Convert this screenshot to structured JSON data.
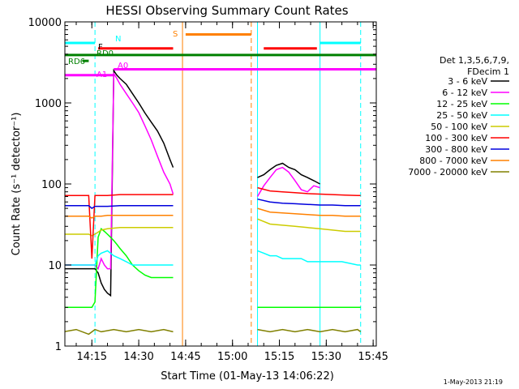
{
  "chart_data": {
    "type": "line",
    "title": "HESSI Observing Summary Count Rates",
    "xlabel": "Start Time (01-May-13 14:06:22)",
    "ylabel": "Count Rate (s⁻¹ detector⁻¹)",
    "y_scale": "log",
    "ylim": [
      1,
      10000
    ],
    "xlim": [
      "14:06:22",
      "15:46:00"
    ],
    "x_ticks": [
      "14:15",
      "14:30",
      "14:45",
      "15:00",
      "15:15",
      "15:30",
      "15:45"
    ],
    "y_ticks": [
      "1",
      "10",
      "100",
      "1000",
      "10000"
    ],
    "timestamp": "1-May-2013 21:19",
    "legend": {
      "position": "right",
      "header": [
        "Det 1,3,5,6,7,9,",
        "FDecim 1"
      ],
      "entries": [
        {
          "label": "3 - 6 keV",
          "color": "#000000"
        },
        {
          "label": "6 - 12 keV",
          "color": "#ff00ff"
        },
        {
          "label": "12 - 25 keV",
          "color": "#00ff00"
        },
        {
          "label": "25 - 50 keV",
          "color": "#00ffff"
        },
        {
          "label": "50 - 100 keV",
          "color": "#cccc00"
        },
        {
          "label": "100 - 300 keV",
          "color": "#ff0000"
        },
        {
          "label": "300 - 800 keV",
          "color": "#0000dd"
        },
        {
          "label": "800 - 7000 keV",
          "color": "#ff8000"
        },
        {
          "label": "7000 - 20000 keV",
          "color": "#808000"
        }
      ]
    },
    "flag_labels": [
      "N",
      "S",
      "F",
      "RD0",
      "RD6",
      "A1",
      "A0"
    ],
    "flag_bars": [
      {
        "name": "N",
        "color": "#00ffff",
        "level": 5500,
        "segments": [
          [
            "14:06",
            "14:16"
          ],
          [
            "15:28",
            "15:41"
          ]
        ]
      },
      {
        "name": "S",
        "color": "#ff8000",
        "level": 7000,
        "segments": [
          [
            "14:45",
            "15:06"
          ]
        ]
      },
      {
        "name": "F",
        "color": "#ff0000",
        "level": 4700,
        "segments": [
          [
            "14:17",
            "14:41"
          ],
          [
            "15:10",
            "15:27"
          ]
        ]
      },
      {
        "name": "RD0",
        "color": "#008000",
        "level": 3900,
        "segments": [
          [
            "14:06",
            "15:46"
          ]
        ]
      },
      {
        "name": "RD6",
        "color": "#008000",
        "level": 3300,
        "segments": [
          [
            "14:12",
            "14:14"
          ]
        ]
      },
      {
        "name": "A0",
        "color": "#ff00ff",
        "level": 2600,
        "segments": [
          [
            "14:22",
            "15:46"
          ]
        ]
      },
      {
        "name": "A1",
        "color": "#ff00ff",
        "level": 2200,
        "segments": [
          [
            "14:06",
            "14:22"
          ]
        ]
      }
    ],
    "vertical_markers": [
      {
        "time": "14:06",
        "color": "#00ffff",
        "style": "solid"
      },
      {
        "time": "14:16",
        "color": "#00ffff",
        "style": "dashed"
      },
      {
        "time": "14:44",
        "color": "#ff8000",
        "style": "solid"
      },
      {
        "time": "15:06",
        "color": "#ff8000",
        "style": "dashed"
      },
      {
        "time": "15:08",
        "color": "#00ffff",
        "style": "solid"
      },
      {
        "time": "15:28",
        "color": "#00ffff",
        "style": "solid"
      },
      {
        "time": "15:41",
        "color": "#00ffff",
        "style": "dashed"
      }
    ],
    "series": [
      {
        "name": "3 - 6 keV",
        "color": "#000000",
        "x": [
          "14:06",
          "14:12",
          "14:14",
          "14:15",
          "14:16",
          "14:17",
          "14:18",
          "14:19",
          "14:20",
          "14:21",
          "14:22",
          "14:23",
          "14:24",
          "14:26",
          "14:28",
          "14:30",
          "14:32",
          "14:34",
          "14:36",
          "14:38",
          "14:40",
          "14:41",
          "15:08",
          "15:10",
          "15:12",
          "15:14",
          "15:16",
          "15:18",
          "15:20",
          "15:22",
          "15:24",
          "15:26",
          "15:28"
        ],
        "y": [
          9,
          9,
          9,
          9,
          9,
          8,
          6,
          5,
          4.5,
          4.2,
          2500,
          2200,
          2000,
          1700,
          1300,
          1000,
          750,
          580,
          450,
          320,
          200,
          160,
          120,
          130,
          150,
          170,
          180,
          160,
          150,
          130,
          120,
          110,
          100
        ]
      },
      {
        "name": "6 - 12 keV",
        "color": "#ff00ff",
        "x": [
          "14:06",
          "14:12",
          "14:14",
          "14:15",
          "14:16",
          "14:17",
          "14:18",
          "14:19",
          "14:20",
          "14:21",
          "14:22",
          "14:23",
          "14:24",
          "14:26",
          "14:28",
          "14:30",
          "14:32",
          "14:34",
          "14:36",
          "14:38",
          "14:40",
          "14:41",
          "15:08",
          "15:10",
          "15:12",
          "15:14",
          "15:16",
          "15:18",
          "15:20",
          "15:22",
          "15:24",
          "15:26",
          "15:28"
        ],
        "y": [
          10,
          10,
          10,
          10,
          10,
          9,
          12,
          10,
          9,
          9,
          2300,
          2000,
          1700,
          1300,
          1000,
          760,
          520,
          350,
          220,
          140,
          100,
          75,
          70,
          95,
          120,
          150,
          160,
          140,
          110,
          85,
          80,
          95,
          90
        ]
      },
      {
        "name": "12 - 25 keV",
        "color": "#00ff00",
        "x": [
          "14:06",
          "14:12",
          "14:14",
          "14:15",
          "14:16",
          "14:17",
          "14:18",
          "14:19",
          "14:20",
          "14:21",
          "14:22",
          "14:23",
          "14:24",
          "14:26",
          "14:28",
          "14:30",
          "14:32",
          "14:34",
          "14:36",
          "14:38",
          "14:40",
          "14:41",
          "15:08",
          "15:10",
          "15:12",
          "15:14",
          "15:16",
          "15:18",
          "15:20",
          "15:22",
          "15:24",
          "15:26",
          "15:28",
          "15:30",
          "15:35",
          "15:40",
          "15:41"
        ],
        "y": [
          3,
          3,
          3,
          3,
          3.5,
          22,
          28,
          26,
          24,
          22,
          20,
          18,
          16,
          13,
          10,
          8.5,
          7.5,
          7,
          7,
          7,
          7,
          7,
          3,
          3,
          3,
          3,
          3,
          3,
          3,
          3,
          3,
          3,
          3,
          3,
          3,
          3,
          3
        ]
      },
      {
        "name": "25 - 50 keV",
        "color": "#00ffff",
        "x": [
          "14:06",
          "14:10",
          "14:14",
          "14:15",
          "14:16",
          "14:17",
          "14:18",
          "14:20",
          "14:22",
          "14:24",
          "14:26",
          "14:28",
          "14:30",
          "14:32",
          "14:34",
          "14:36",
          "14:38",
          "14:40",
          "14:41",
          "15:08",
          "15:10",
          "15:12",
          "15:14",
          "15:16",
          "15:18",
          "15:20",
          "15:22",
          "15:24",
          "15:26",
          "15:28",
          "15:30",
          "15:35",
          "15:40",
          "15:41"
        ],
        "y": [
          10,
          10,
          10,
          10,
          10,
          13,
          14,
          15,
          13,
          12,
          11,
          10,
          10,
          10,
          10,
          10,
          10,
          10,
          10,
          15,
          14,
          13,
          13,
          12,
          12,
          12,
          12,
          11,
          11,
          11,
          11,
          11,
          10,
          10
        ]
      },
      {
        "name": "50 - 100 keV",
        "color": "#cccc00",
        "x": [
          "14:06",
          "14:10",
          "14:14",
          "14:15",
          "14:16",
          "14:18",
          "14:20",
          "14:24",
          "14:28",
          "14:32",
          "14:36",
          "14:40",
          "14:41",
          "15:08",
          "15:12",
          "15:16",
          "15:20",
          "15:24",
          "15:28",
          "15:32",
          "15:36",
          "15:40",
          "15:41"
        ],
        "y": [
          24,
          24,
          24,
          23,
          24,
          27,
          28,
          29,
          29,
          29,
          29,
          29,
          29,
          37,
          32,
          31,
          30,
          29,
          28,
          27,
          26,
          26,
          26
        ]
      },
      {
        "name": "100 - 300 keV",
        "color": "#ff0000",
        "x": [
          "14:06",
          "14:10",
          "14:14",
          "14:15",
          "14:16",
          "14:18",
          "14:20",
          "14:24",
          "14:28",
          "14:32",
          "14:36",
          "14:40",
          "14:41",
          "15:08",
          "15:12",
          "15:16",
          "15:20",
          "15:24",
          "15:28",
          "15:32",
          "15:36",
          "15:40",
          "15:41"
        ],
        "y": [
          72,
          72,
          72,
          12,
          72,
          72,
          72,
          74,
          74,
          74,
          74,
          74,
          74,
          90,
          82,
          80,
          78,
          76,
          75,
          74,
          73,
          72,
          72
        ]
      },
      {
        "name": "300 - 800 keV",
        "color": "#0000dd",
        "x": [
          "14:06",
          "14:10",
          "14:14",
          "14:15",
          "14:16",
          "14:18",
          "14:20",
          "14:24",
          "14:28",
          "14:32",
          "14:36",
          "14:40",
          "14:41",
          "15:08",
          "15:12",
          "15:16",
          "15:20",
          "15:24",
          "15:28",
          "15:32",
          "15:36",
          "15:40",
          "15:41"
        ],
        "y": [
          54,
          54,
          54,
          50,
          53,
          53,
          53,
          54,
          54,
          54,
          54,
          54,
          54,
          65,
          60,
          58,
          57,
          56,
          55,
          55,
          54,
          54,
          54
        ]
      },
      {
        "name": "800 - 7000 keV",
        "color": "#ff8000",
        "x": [
          "14:06",
          "14:10",
          "14:14",
          "14:15",
          "14:16",
          "14:18",
          "14:20",
          "14:24",
          "14:28",
          "14:32",
          "14:36",
          "14:40",
          "14:41",
          "15:08",
          "15:12",
          "15:16",
          "15:20",
          "15:24",
          "15:28",
          "15:32",
          "15:36",
          "15:40",
          "15:41"
        ],
        "y": [
          40,
          40,
          40,
          38,
          40,
          40,
          41,
          41,
          41,
          41,
          41,
          41,
          41,
          50,
          45,
          44,
          43,
          42,
          41,
          41,
          40,
          40,
          40
        ]
      },
      {
        "name": "7000 - 20000 keV",
        "color": "#808000",
        "x": [
          "14:06",
          "14:10",
          "14:14",
          "14:16",
          "14:18",
          "14:22",
          "14:26",
          "14:30",
          "14:34",
          "14:38",
          "14:41",
          "15:08",
          "15:12",
          "15:16",
          "15:20",
          "15:24",
          "15:28",
          "15:32",
          "15:36",
          "15:40",
          "15:41"
        ],
        "y": [
          1.5,
          1.6,
          1.4,
          1.6,
          1.5,
          1.6,
          1.5,
          1.6,
          1.5,
          1.6,
          1.5,
          1.6,
          1.5,
          1.6,
          1.5,
          1.6,
          1.5,
          1.6,
          1.5,
          1.6,
          1.5
        ]
      }
    ]
  }
}
